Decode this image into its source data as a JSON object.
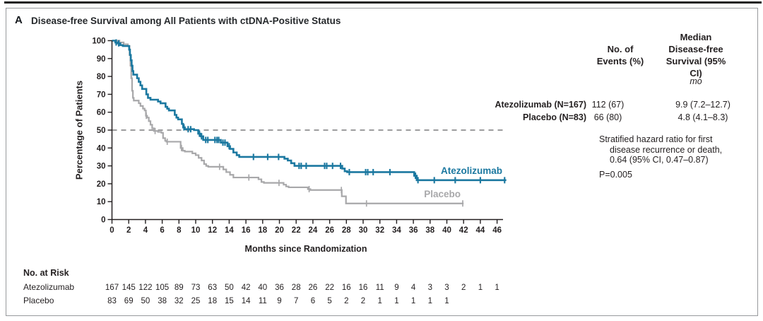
{
  "panel": {
    "letter": "A",
    "title": "Disease-free Survival among All Patients with ctDNA-Positive Status"
  },
  "colors": {
    "atezolizumab": "#1b78a0",
    "placebo": "#a8a8aa",
    "axis": "#231f20",
    "reference_dash": "#7b7c7e",
    "frame_border": "#97999c"
  },
  "stats": {
    "events_header": [
      "No. of",
      "Events (%)"
    ],
    "median_header": [
      "Median",
      "Disease-free",
      "Survival (95% CI)"
    ],
    "unit": "mo",
    "rows": [
      {
        "label": "Atezolizumab (N=167)",
        "events": "112 (67)",
        "median": "9.9 (7.2–12.7)"
      },
      {
        "label": "Placebo (N=83)",
        "events": "66 (80)",
        "median": "4.8 (4.1–8.3)"
      }
    ],
    "hazard_note": [
      "Stratified hazard ratio for first",
      "disease recurrence or death,",
      "0.64 (95% CI, 0.47–0.87)"
    ],
    "p_value": "P=0.005"
  },
  "risk_table": {
    "title": "No. at Risk",
    "rows": [
      {
        "label": "Atezolizumab",
        "values": [
          167,
          145,
          122,
          105,
          89,
          73,
          63,
          50,
          42,
          40,
          36,
          28,
          26,
          22,
          16,
          16,
          11,
          9,
          4,
          3,
          3,
          2,
          1,
          1
        ]
      },
      {
        "label": "Placebo",
        "values": [
          83,
          69,
          50,
          38,
          32,
          25,
          18,
          15,
          14,
          11,
          9,
          7,
          6,
          5,
          2,
          2,
          1,
          1,
          1,
          1,
          1
        ]
      }
    ]
  },
  "chart_data": {
    "type": "line",
    "subtype": "kaplan-meier-step",
    "title": "Disease-free Survival among All Patients with ctDNA-Positive Status",
    "xlabel": "Months since Randomization",
    "ylabel": "Percentage of Patients",
    "xlim": [
      0,
      47.5
    ],
    "ylim": [
      0,
      100
    ],
    "x_ticks": [
      0,
      2,
      4,
      6,
      8,
      10,
      12,
      14,
      16,
      18,
      20,
      22,
      24,
      26,
      28,
      30,
      32,
      34,
      36,
      38,
      40,
      42,
      44,
      46
    ],
    "y_ticks": [
      0,
      10,
      20,
      30,
      40,
      50,
      60,
      70,
      80,
      90,
      100
    ],
    "reference_line_y": 50,
    "grid": false,
    "legend_position": "inline-right",
    "series": [
      {
        "name": "Atezolizumab",
        "color": "#1b78a0",
        "median_months": 9.9,
        "steps": [
          [
            0,
            100
          ],
          [
            0.4,
            99
          ],
          [
            0.7,
            98.5
          ],
          [
            1.0,
            97.5
          ],
          [
            1.3,
            97
          ],
          [
            2.05,
            95
          ],
          [
            2.15,
            92
          ],
          [
            2.25,
            89
          ],
          [
            2.35,
            86
          ],
          [
            2.45,
            83
          ],
          [
            2.55,
            81
          ],
          [
            3.0,
            79
          ],
          [
            3.2,
            77
          ],
          [
            3.4,
            75
          ],
          [
            3.6,
            73
          ],
          [
            4.1,
            70
          ],
          [
            4.3,
            68
          ],
          [
            4.6,
            67
          ],
          [
            5.5,
            66
          ],
          [
            5.8,
            65
          ],
          [
            6.4,
            63
          ],
          [
            6.6,
            62
          ],
          [
            6.8,
            61
          ],
          [
            7.5,
            58.5
          ],
          [
            7.7,
            57
          ],
          [
            7.9,
            56
          ],
          [
            8.35,
            53.5
          ],
          [
            8.5,
            51.5
          ],
          [
            8.7,
            50.5
          ],
          [
            9.8,
            50
          ],
          [
            10.3,
            48
          ],
          [
            10.6,
            46.5
          ],
          [
            10.9,
            44.5
          ],
          [
            13.0,
            43
          ],
          [
            13.8,
            41
          ],
          [
            14.1,
            39.5
          ],
          [
            14.5,
            37.5
          ],
          [
            14.9,
            36
          ],
          [
            15.2,
            35
          ],
          [
            20.6,
            34
          ],
          [
            21.0,
            33
          ],
          [
            21.4,
            31.5
          ],
          [
            21.8,
            30
          ],
          [
            27.5,
            28.5
          ],
          [
            27.8,
            27
          ],
          [
            28.1,
            26.5
          ],
          [
            36.1,
            24.5
          ],
          [
            36.4,
            22
          ]
        ],
        "end_month": 47.1,
        "censor_times": [
          0.5,
          0.8,
          8.6,
          9.1,
          9.4,
          10.45,
          10.7,
          11.2,
          11.45,
          12.3,
          12.55,
          12.75,
          13.25,
          13.5,
          14.0,
          16.9,
          18.6,
          19.9,
          22.35,
          22.6,
          23.2,
          25.4,
          25.65,
          26.35,
          27.3,
          28.35,
          30.3,
          30.55,
          31.2,
          33.2,
          36.25,
          36.55,
          38.5,
          41.0,
          44.0,
          46.9
        ]
      },
      {
        "name": "Placebo",
        "color": "#a8a8aa",
        "median_months": 4.8,
        "steps": [
          [
            0,
            100
          ],
          [
            0.9,
            99
          ],
          [
            1.4,
            98
          ],
          [
            1.9,
            97
          ],
          [
            2.1,
            92
          ],
          [
            2.2,
            86
          ],
          [
            2.3,
            79
          ],
          [
            2.4,
            72
          ],
          [
            2.5,
            68
          ],
          [
            2.6,
            66.5
          ],
          [
            3.2,
            65
          ],
          [
            3.4,
            63.5
          ],
          [
            3.7,
            62
          ],
          [
            3.9,
            61
          ],
          [
            4.05,
            58
          ],
          [
            4.2,
            57
          ],
          [
            4.4,
            55
          ],
          [
            4.6,
            53
          ],
          [
            4.8,
            51
          ],
          [
            5.0,
            49.5
          ],
          [
            5.5,
            49
          ],
          [
            5.9,
            48.5
          ],
          [
            6.1,
            45.5
          ],
          [
            6.35,
            44
          ],
          [
            6.5,
            43.5
          ],
          [
            8.2,
            40
          ],
          [
            8.45,
            38.5
          ],
          [
            8.7,
            38
          ],
          [
            9.6,
            37
          ],
          [
            10.0,
            36
          ],
          [
            10.35,
            34.5
          ],
          [
            10.7,
            33
          ],
          [
            11.0,
            31
          ],
          [
            11.25,
            30
          ],
          [
            11.5,
            29.5
          ],
          [
            13.3,
            28
          ],
          [
            13.65,
            26.5
          ],
          [
            14.1,
            25
          ],
          [
            14.5,
            23.5
          ],
          [
            17.5,
            22.5
          ],
          [
            17.85,
            21
          ],
          [
            18.15,
            20.5
          ],
          [
            20.5,
            19.5
          ],
          [
            20.8,
            18.5
          ],
          [
            21.1,
            18
          ],
          [
            23.4,
            17
          ],
          [
            23.7,
            16.5
          ],
          [
            27.45,
            13
          ],
          [
            27.95,
            9
          ]
        ],
        "end_month": 42.0,
        "censor_times": [
          4.1,
          5.15,
          6.6,
          8.3,
          12.85,
          16.35,
          19.95,
          23.55,
          27.4,
          30.4,
          41.9
        ]
      }
    ]
  }
}
